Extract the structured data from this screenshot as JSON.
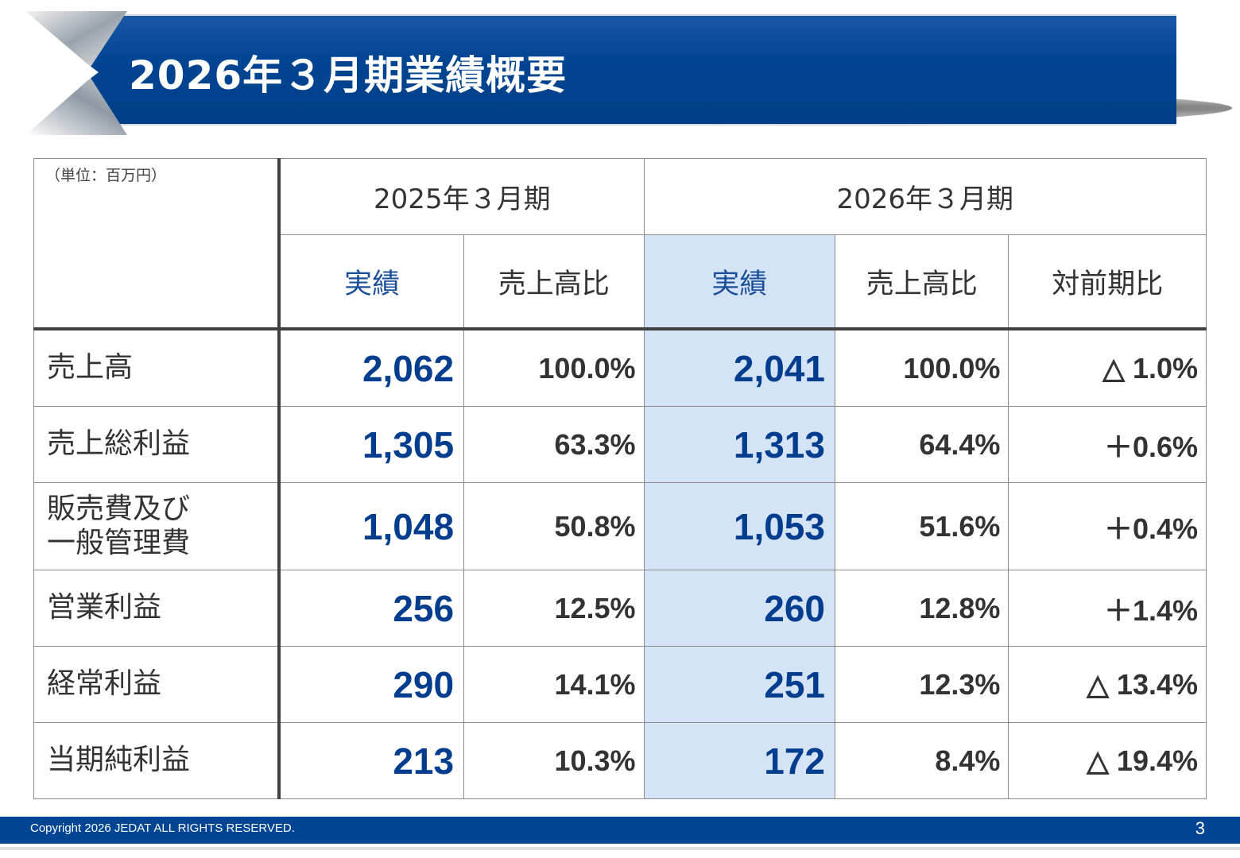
{
  "title": "2026年３月期業績概要",
  "table": {
    "unit": "（単位：百万円）",
    "periods": [
      "2025年３月期",
      "2026年３月期"
    ],
    "subheaders": [
      "実績",
      "売上高比",
      "実績",
      "売上高比",
      "対前期比"
    ],
    "rows": [
      {
        "label": "売上高",
        "actual_2025": "2,062",
        "ratio_2025": "100.0%",
        "actual_2026": "2,041",
        "ratio_2026": "100.0%",
        "yoy": "△ 1.0%"
      },
      {
        "label": "売上総利益",
        "actual_2025": "1,305",
        "ratio_2025": "63.3%",
        "actual_2026": "1,313",
        "ratio_2026": "64.4%",
        "yoy": "＋0.6%"
      },
      {
        "label_line1": "販売費及び",
        "label_line2": "一般管理費",
        "actual_2025": "1,048",
        "ratio_2025": "50.8%",
        "actual_2026": "1,053",
        "ratio_2026": "51.6%",
        "yoy": "＋0.4%"
      },
      {
        "label": "営業利益",
        "actual_2025": "256",
        "ratio_2025": "12.5%",
        "actual_2026": "260",
        "ratio_2026": "12.8%",
        "yoy": "＋1.4%"
      },
      {
        "label": "経常利益",
        "actual_2025": "290",
        "ratio_2025": "14.1%",
        "actual_2026": "251",
        "ratio_2026": "12.3%",
        "yoy": "△ 13.4%"
      },
      {
        "label": "当期純利益",
        "actual_2025": "213",
        "ratio_2025": "10.3%",
        "actual_2026": "172",
        "ratio_2026": "8.4%",
        "yoy": "△ 19.4%"
      }
    ]
  },
  "footer": {
    "copyright": "Copyright 2026 JEDAT ALL RIGHTS RESERVED.",
    "page": "3"
  },
  "colors": {
    "brand_blue": "#004593",
    "value_blue": "#003d8f",
    "highlight": "#d5e3f6"
  }
}
